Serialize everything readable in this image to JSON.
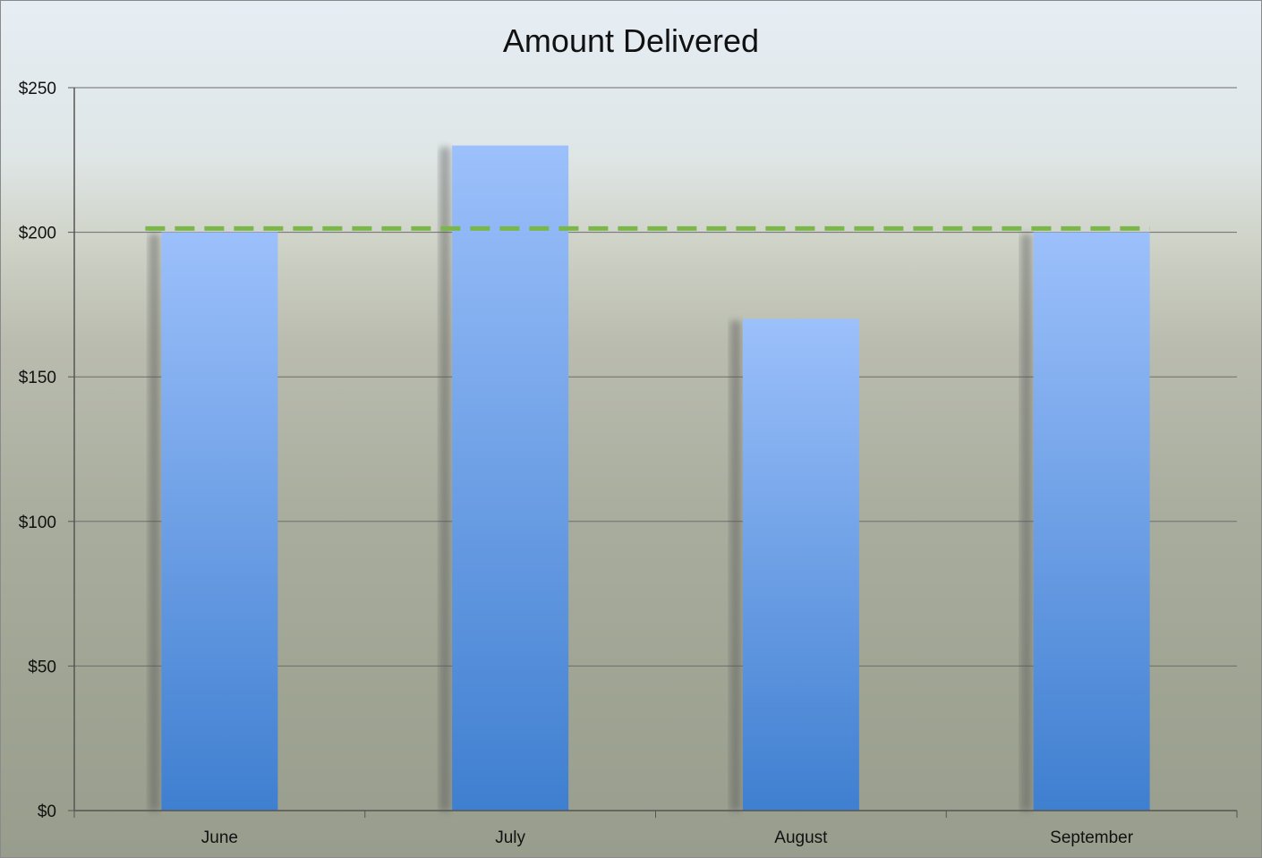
{
  "chart_data": {
    "type": "bar",
    "title": "Amount Delivered",
    "categories": [
      "June",
      "July",
      "August",
      "September"
    ],
    "values": [
      200,
      230,
      170,
      200
    ],
    "ylim": [
      0,
      250
    ],
    "yticks": [
      0,
      50,
      100,
      150,
      200,
      250
    ],
    "ytick_labels": [
      "$0",
      "$50",
      "$100",
      "$150",
      "$200",
      "$250"
    ],
    "reference_line": {
      "value": 201,
      "style": "dashed",
      "color": "#7ab648"
    },
    "grid": true,
    "bar_color_top": "#9cc0fb",
    "bar_color_bottom": "#3f7fd0"
  }
}
